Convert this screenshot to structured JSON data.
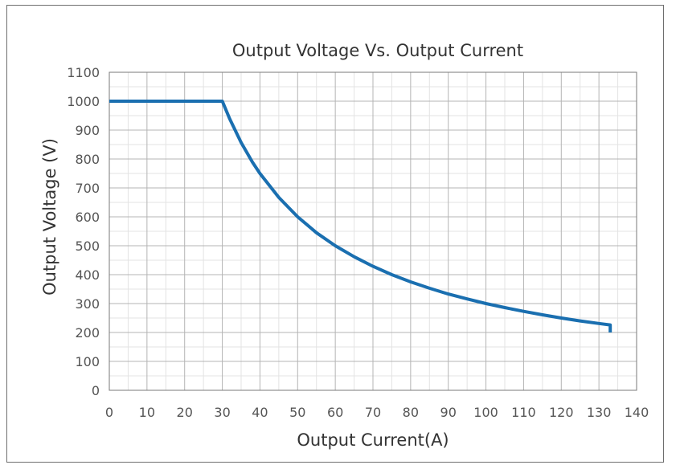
{
  "chart_data": {
    "type": "line",
    "title": "Output Voltage Vs. Output Current",
    "xlabel": "Output Current(A)",
    "ylabel": "Output Voltage (V)",
    "xlim": [
      0,
      140
    ],
    "ylim": [
      0,
      1100
    ],
    "x_ticks": [
      0,
      10,
      20,
      30,
      40,
      50,
      60,
      70,
      80,
      90,
      100,
      110,
      120,
      130,
      140
    ],
    "y_ticks": [
      0,
      100,
      200,
      300,
      400,
      500,
      600,
      700,
      800,
      900,
      1000,
      1100
    ],
    "grid": true,
    "minor_grid": true,
    "legend": "none",
    "series": [
      {
        "color": "#1a6fb0",
        "x": [
          0,
          30,
          32,
          35,
          38,
          40,
          45,
          50,
          55,
          60,
          65,
          70,
          75,
          80,
          85,
          90,
          95,
          100,
          105,
          110,
          115,
          120,
          125,
          130,
          133,
          133
        ],
        "y": [
          1000,
          1000,
          938,
          857,
          789,
          750,
          667,
          600,
          545,
          500,
          462,
          429,
          400,
          375,
          353,
          333,
          316,
          300,
          286,
          273,
          261,
          250,
          240,
          231,
          226,
          200
        ]
      }
    ]
  }
}
